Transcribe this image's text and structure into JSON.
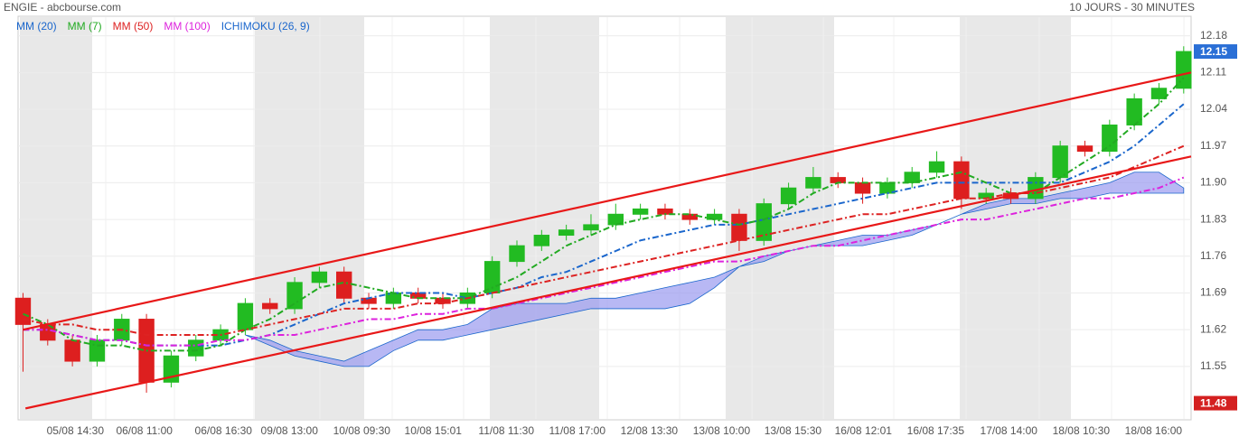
{
  "chart_data": {
    "type": "candlestick",
    "title": "ENGIE - abcbourse.com",
    "subtitle": "10 JOURS - 30 MINUTES",
    "ylim": [
      11.45,
      12.2
    ],
    "yticks": [
      12.18,
      12.11,
      12.04,
      11.97,
      {
        "value": 11.9,
        "label": "11.90"
      },
      11.83,
      11.76,
      11.69,
      11.62,
      11.55
    ],
    "xlim": [
      -0.2,
      47.3
    ],
    "xticks": [
      {
        "value": 3.35,
        "label": "05/08 14:30"
      },
      {
        "value": 6.13,
        "label": "06/08 11:00"
      },
      {
        "value": 9.35,
        "label": "06/08 16:30"
      },
      {
        "value": 12.02,
        "label": "09/08 13:00"
      },
      {
        "value": 14.95,
        "label": "10/08 09:30"
      },
      {
        "value": 17.84,
        "label": "10/08 15:01"
      },
      {
        "value": 20.77,
        "label": "11/08 11:30"
      },
      {
        "value": 23.66,
        "label": "11/08 17:00"
      },
      {
        "value": 26.59,
        "label": "12/08 13:30"
      },
      {
        "value": 29.52,
        "label": "13/08 10:00"
      },
      {
        "value": 32.41,
        "label": "13/08 15:30"
      },
      {
        "value": 35.26,
        "label": "16/08 12:01"
      },
      {
        "value": 38.19,
        "label": "16/08 17:35"
      },
      {
        "value": 41.15,
        "label": "17/08 14:00"
      },
      {
        "value": 44.08,
        "label": "18/08 10:30"
      },
      {
        "value": 47.01,
        "label": "18/08 16:00"
      }
    ],
    "candles": {
      "up_color": "#22bb22",
      "down_color": "#dd1f1f",
      "opens": [
        11.68,
        11.63,
        11.6,
        11.56,
        11.6,
        11.64,
        11.52,
        11.57,
        11.6,
        11.62,
        11.67,
        11.66,
        11.71,
        11.73,
        11.68,
        11.67,
        11.69,
        11.68,
        11.67,
        11.69,
        11.75,
        11.78,
        11.8,
        11.81,
        11.82,
        11.84,
        11.85,
        11.84,
        11.83,
        11.84,
        11.79,
        11.86,
        11.89,
        11.91,
        11.9,
        11.88,
        11.9,
        11.92,
        11.94,
        11.87,
        11.88,
        11.87,
        11.91,
        11.97,
        11.96,
        12.01,
        12.06,
        12.08
      ],
      "highs": [
        11.69,
        11.64,
        11.61,
        11.61,
        11.65,
        11.65,
        11.58,
        11.61,
        11.63,
        11.68,
        11.68,
        11.72,
        11.74,
        11.74,
        11.69,
        11.7,
        11.7,
        11.69,
        11.7,
        11.76,
        11.79,
        11.81,
        11.82,
        11.84,
        11.86,
        11.86,
        11.86,
        11.85,
        11.85,
        11.85,
        11.87,
        11.9,
        11.93,
        11.92,
        11.91,
        11.91,
        11.93,
        11.96,
        11.95,
        11.89,
        11.89,
        11.92,
        11.98,
        11.98,
        12.02,
        12.07,
        12.09,
        12.16
      ],
      "lows": [
        11.54,
        11.59,
        11.55,
        11.55,
        11.59,
        11.5,
        11.51,
        11.56,
        11.59,
        11.61,
        11.65,
        11.65,
        11.7,
        11.67,
        11.66,
        11.66,
        11.67,
        11.66,
        11.66,
        11.68,
        11.74,
        11.77,
        11.79,
        11.8,
        11.81,
        11.83,
        11.83,
        11.82,
        11.82,
        11.77,
        11.78,
        11.85,
        11.88,
        11.89,
        11.86,
        11.87,
        11.89,
        11.91,
        11.85,
        11.86,
        11.86,
        11.86,
        11.9,
        11.95,
        11.95,
        12.0,
        12.05,
        12.07
      ],
      "closes": [
        11.63,
        11.6,
        11.56,
        11.6,
        11.64,
        11.52,
        11.57,
        11.6,
        11.62,
        11.67,
        11.66,
        11.71,
        11.73,
        11.68,
        11.67,
        11.69,
        11.68,
        11.67,
        11.69,
        11.75,
        11.78,
        11.8,
        11.81,
        11.82,
        11.84,
        11.85,
        11.84,
        11.83,
        11.84,
        11.79,
        11.86,
        11.89,
        11.91,
        11.9,
        11.88,
        11.9,
        11.92,
        11.94,
        11.87,
        11.88,
        11.87,
        11.91,
        11.97,
        11.96,
        12.01,
        12.06,
        12.08,
        12.15
      ]
    },
    "series": [
      {
        "name": "MM (20)",
        "color": "#1a66cc",
        "values": [
          11.62,
          11.62,
          11.61,
          11.6,
          11.6,
          11.59,
          11.59,
          11.59,
          11.59,
          11.6,
          11.61,
          11.63,
          11.65,
          11.67,
          11.68,
          11.69,
          11.69,
          11.69,
          11.68,
          11.69,
          11.7,
          11.72,
          11.73,
          11.75,
          11.77,
          11.79,
          11.8,
          11.81,
          11.82,
          11.82,
          11.83,
          11.84,
          11.85,
          11.86,
          11.87,
          11.88,
          11.89,
          11.9,
          11.9,
          11.9,
          11.9,
          11.9,
          11.9,
          11.92,
          11.94,
          11.97,
          12.01,
          12.05
        ]
      },
      {
        "name": "MM (7)",
        "color": "#22aa22",
        "values": [
          11.65,
          11.63,
          11.6,
          11.59,
          11.59,
          11.58,
          11.58,
          11.58,
          11.59,
          11.62,
          11.64,
          11.67,
          11.7,
          11.71,
          11.7,
          11.69,
          11.68,
          11.68,
          11.68,
          11.7,
          11.72,
          11.75,
          11.78,
          11.8,
          11.82,
          11.83,
          11.84,
          11.84,
          11.83,
          11.82,
          11.83,
          11.85,
          11.88,
          11.9,
          11.9,
          11.9,
          11.9,
          11.91,
          11.92,
          11.9,
          11.88,
          11.88,
          11.91,
          11.94,
          11.97,
          12.01,
          12.05,
          12.1
        ]
      },
      {
        "name": "MM (50)",
        "color": "#dd2222",
        "values": [
          11.64,
          11.63,
          11.63,
          11.62,
          11.62,
          11.61,
          11.61,
          11.61,
          11.61,
          11.62,
          11.63,
          11.64,
          11.65,
          11.66,
          11.66,
          11.66,
          11.67,
          11.67,
          11.68,
          11.69,
          11.7,
          11.71,
          11.72,
          11.73,
          11.74,
          11.75,
          11.76,
          11.77,
          11.78,
          11.79,
          11.8,
          11.81,
          11.82,
          11.83,
          11.84,
          11.84,
          11.85,
          11.86,
          11.87,
          11.87,
          11.88,
          11.88,
          11.89,
          11.9,
          11.91,
          11.93,
          11.95,
          11.97
        ]
      },
      {
        "name": "MM (100)",
        "color": "#dd22dd",
        "values": [
          11.62,
          11.62,
          11.61,
          11.6,
          11.6,
          11.59,
          11.59,
          11.59,
          11.6,
          11.6,
          11.61,
          11.61,
          11.62,
          11.63,
          11.64,
          11.64,
          11.65,
          11.65,
          11.66,
          11.66,
          11.67,
          11.68,
          11.69,
          11.7,
          11.71,
          11.72,
          11.73,
          11.74,
          11.75,
          11.75,
          11.76,
          11.77,
          11.78,
          11.78,
          11.79,
          11.8,
          11.81,
          11.82,
          11.83,
          11.83,
          11.84,
          11.85,
          11.86,
          11.87,
          11.87,
          11.88,
          11.89,
          11.91
        ]
      },
      {
        "name": "ICHIMOKU (26, 9)",
        "color": "#1a66cc",
        "fill": "#9a9af0",
        "values": [
          null,
          null,
          null,
          null,
          null,
          null,
          null,
          null,
          null,
          11.61,
          11.6,
          11.58,
          11.57,
          11.56,
          11.58,
          11.6,
          11.62,
          11.62,
          11.63,
          11.66,
          11.67,
          11.67,
          11.67,
          11.68,
          11.68,
          11.69,
          11.7,
          11.71,
          11.72,
          11.74,
          11.76,
          11.77,
          11.78,
          11.79,
          11.8,
          11.8,
          11.81,
          11.82,
          11.84,
          11.86,
          11.87,
          11.87,
          11.88,
          11.89,
          11.9,
          11.92,
          11.92,
          11.89
        ],
        "values_b": [
          null,
          null,
          null,
          null,
          null,
          null,
          null,
          null,
          null,
          11.61,
          11.59,
          11.57,
          11.56,
          11.55,
          11.55,
          11.58,
          11.6,
          11.6,
          11.61,
          11.62,
          11.63,
          11.64,
          11.65,
          11.66,
          11.66,
          11.66,
          11.66,
          11.67,
          11.7,
          11.74,
          11.75,
          11.77,
          11.78,
          11.78,
          11.78,
          11.79,
          11.8,
          11.82,
          11.84,
          11.85,
          11.86,
          11.86,
          11.87,
          11.87,
          11.88,
          11.88,
          11.88,
          11.88
        ]
      }
    ],
    "trendlines": [
      {
        "color": "#e81818",
        "x": [
          0,
          47.3
        ],
        "values": [
          11.62,
          12.11
        ]
      },
      {
        "color": "#e81818",
        "x": [
          0.1,
          47.3
        ],
        "values": [
          11.47,
          11.95
        ]
      }
    ],
    "price_markers": [
      {
        "value": 12.15,
        "color": "#2a6fd6"
      },
      {
        "value": 11.48,
        "color": "#d42020"
      }
    ]
  }
}
